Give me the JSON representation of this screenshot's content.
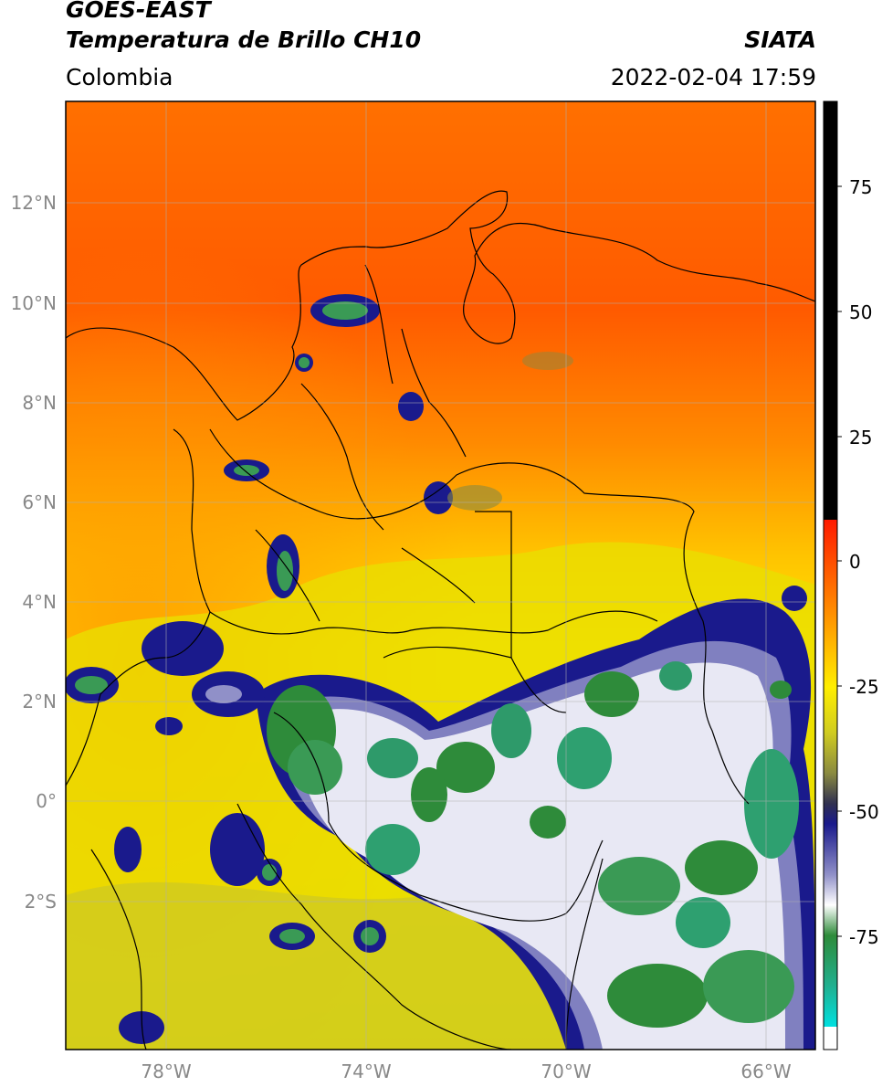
{
  "header": {
    "title_line1": "GOES-EAST",
    "title_line2": "Temperatura de Brillo CH10",
    "brand": "SIATA",
    "region": "Colombia",
    "timestamp": "2022-02-04 17:59"
  },
  "map": {
    "lat_ticks": [
      "12°N",
      "10°N",
      "8°N",
      "6°N",
      "4°N",
      "2°N",
      "0°",
      "2°S"
    ],
    "lon_ticks": [
      "78°W",
      "74°W",
      "70°W",
      "66°W"
    ],
    "extent": {
      "lon_min": -80,
      "lon_max": -65,
      "lat_min": -5,
      "lat_max": 14
    }
  },
  "colorbar": {
    "ticks": [
      "75",
      "50",
      "25",
      "0",
      "-25",
      "-50",
      "-75"
    ],
    "colors": {
      "black": "#000000",
      "red": "#ff1a00",
      "orange": "#ff8c00",
      "yellow": "#ffee00",
      "olive": "#a8a834",
      "navy": "#1a1a8c",
      "white": "#ffffff",
      "green": "#2e8b3a",
      "teal": "#20b090",
      "cyan": "#00e0e0"
    }
  }
}
